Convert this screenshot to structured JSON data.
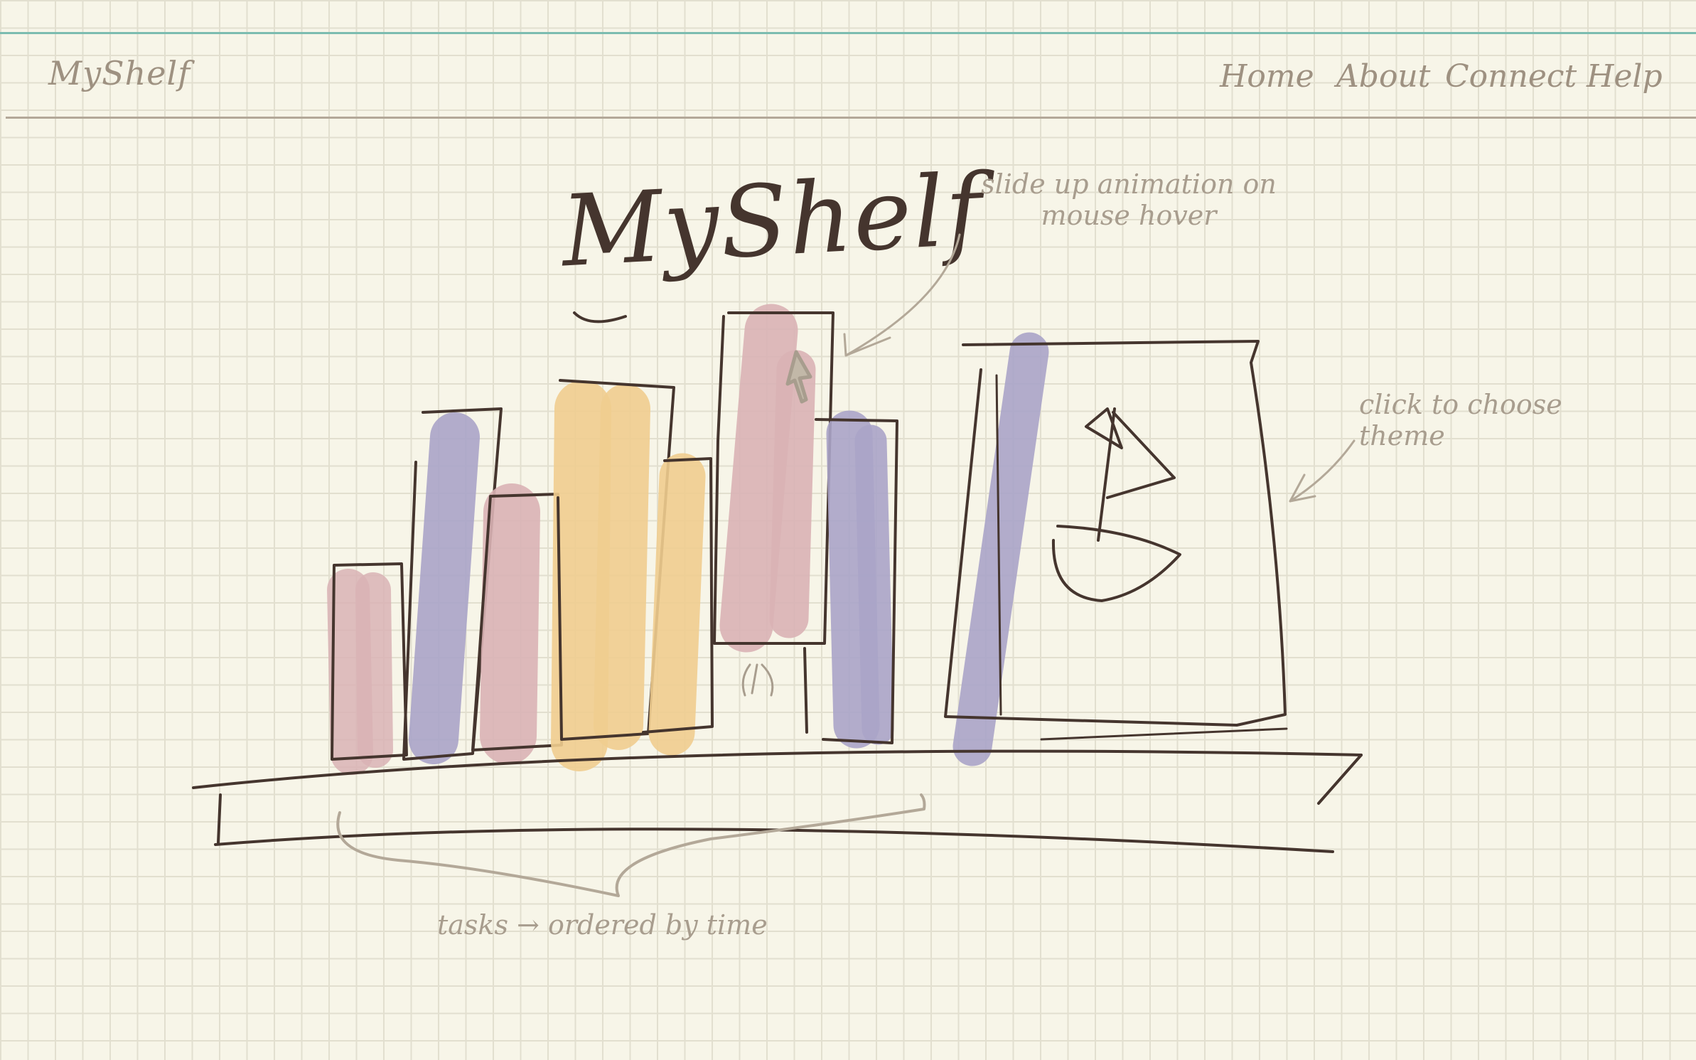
{
  "header": {
    "brand": "MyShelf",
    "nav": [
      {
        "label": "Home"
      },
      {
        "label": "About"
      },
      {
        "label": "Connect"
      },
      {
        "label": "Help"
      }
    ]
  },
  "hero": {
    "title": "MyShelf"
  },
  "annotations": {
    "slide_up": "slide up animation on mouse hover",
    "click_theme": "click to choose theme",
    "tasks": "tasks → ordered by time"
  },
  "shelf": {
    "books": [
      {
        "color": "#d9b3b5"
      },
      {
        "color": "#aaa4c8"
      },
      {
        "color": "#d9b3b5"
      },
      {
        "color": "#f0cd8f"
      },
      {
        "color": "#f0cd8f"
      },
      {
        "color": "#d9b3b5"
      },
      {
        "color": "#aaa4c8"
      }
    ],
    "theme_box": {
      "accent": "#aaa4c8",
      "icon": "sailboat-icon"
    }
  },
  "colors": {
    "accent_teal": "#7cbcb0",
    "ink": "#45352e",
    "pencil": "#a89d8e",
    "paper": "#f7f5e8"
  }
}
